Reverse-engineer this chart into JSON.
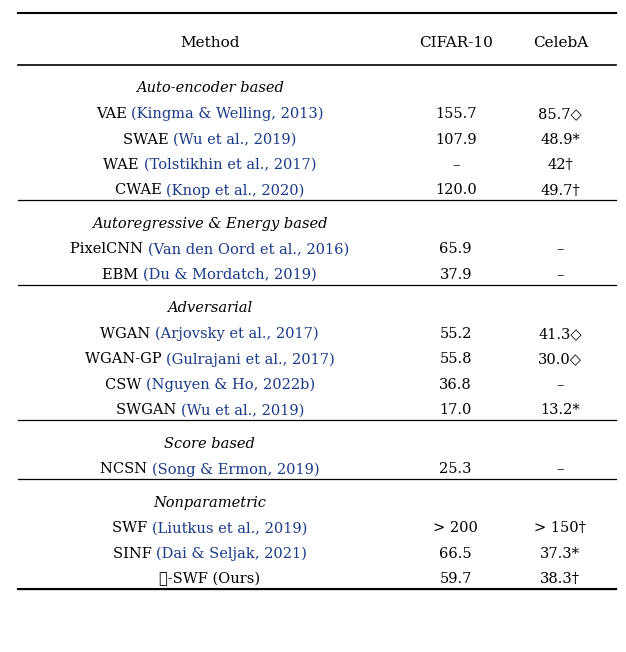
{
  "col_headers": [
    "Method",
    "CIFAR-10",
    "CelebA"
  ],
  "sections": [
    {
      "header": "Auto-encoder based",
      "rows": [
        [
          "VAE ",
          "(Kingma & Welling, 2013)",
          "155.7",
          "85.7◇"
        ],
        [
          "SWAE ",
          "(Wu et al., 2019)",
          "107.9",
          "48.9*"
        ],
        [
          "WAE ",
          "(Tolstikhin et al., 2017)",
          "–",
          "42†"
        ],
        [
          "CWAE ",
          "(Knop et al., 2020)",
          "120.0",
          "49.7†"
        ]
      ]
    },
    {
      "header": "Autoregressive & Energy based",
      "rows": [
        [
          "PixelCNN ",
          "(Van den Oord et al., 2016)",
          "65.9",
          "–"
        ],
        [
          "EBM ",
          "(Du & Mordatch, 2019)",
          "37.9",
          "–"
        ]
      ]
    },
    {
      "header": "Adversarial",
      "rows": [
        [
          "WGAN ",
          "(Arjovsky et al., 2017)",
          "55.2",
          "41.3◇"
        ],
        [
          "WGAN-GP ",
          "(Gulrajani et al., 2017)",
          "55.8",
          "30.0◇"
        ],
        [
          "CSW ",
          "(Nguyen & Ho, 2022b)",
          "36.8",
          "–"
        ],
        [
          "SWGAN ",
          "(Wu et al., 2019)",
          "17.0",
          "13.2*"
        ]
      ]
    },
    {
      "header": "Score based",
      "rows": [
        [
          "NCSN ",
          "(Song & Ermon, 2019)",
          "25.3",
          "–"
        ]
      ]
    },
    {
      "header": "Nonparametric",
      "rows": [
        [
          "SWF ",
          "(Liutkus et al., 2019)",
          "> 200",
          "> 150†"
        ],
        [
          "SINF ",
          "(Dai & Seljak, 2021)",
          "66.5",
          "37.3*"
        ],
        [
          "ℓ-SWF (Ours)",
          "",
          "59.7",
          "38.3†"
        ]
      ]
    }
  ],
  "cite_color": "#1a3a8a",
  "plain_color": "#000000",
  "fig_width": 6.26,
  "fig_height": 6.52,
  "dpi": 100,
  "fontsize": 10.5,
  "header_fontsize": 11.0
}
